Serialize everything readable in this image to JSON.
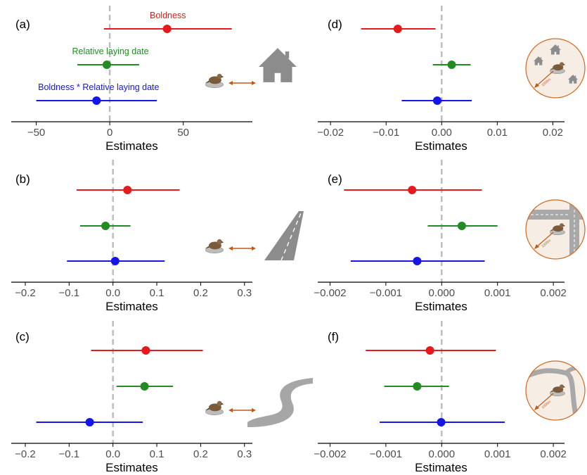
{
  "chart_data": [
    {
      "panel": "(a)",
      "type": "forest",
      "xlabel": "Estimates",
      "ticks": [
        -50,
        0,
        50
      ],
      "tick_labels": [
        "−50",
        "0",
        "50"
      ],
      "xlim": [
        -67,
        97
      ],
      "icon": "nest-distance-to-house-icon",
      "series_labels": [
        "Boldness",
        "Relative laying date",
        "Boldness * Relative laying date"
      ],
      "series": [
        {
          "name": "Boldness",
          "color": "#e41a1c",
          "estimate": 39,
          "lower": -4,
          "upper": 83
        },
        {
          "name": "Relative laying date",
          "color": "#238b23",
          "estimate": -2,
          "lower": -22,
          "upper": 20
        },
        {
          "name": "Boldness * Relative laying date",
          "color": "#1515e6",
          "estimate": -9,
          "lower": -50,
          "upper": 32
        }
      ]
    },
    {
      "panel": "(b)",
      "type": "forest",
      "xlabel": "Estimates",
      "ticks": [
        -0.2,
        -0.1,
        0.0,
        0.1,
        0.2,
        0.3
      ],
      "tick_labels": [
        "−0.2",
        "−0.1",
        "0.0",
        "0.1",
        "0.2",
        "0.3"
      ],
      "xlim": [
        -0.232,
        0.318
      ],
      "icon": "nest-distance-to-road-icon",
      "series": [
        {
          "name": "Boldness",
          "color": "#e41a1c",
          "estimate": 0.033,
          "lower": -0.083,
          "upper": 0.152
        },
        {
          "name": "Relative laying date",
          "color": "#238b23",
          "estimate": -0.017,
          "lower": -0.075,
          "upper": 0.04
        },
        {
          "name": "Boldness * Relative laying date",
          "color": "#1515e6",
          "estimate": 0.005,
          "lower": -0.105,
          "upper": 0.118
        }
      ]
    },
    {
      "panel": "(c)",
      "type": "forest",
      "xlabel": "Estimates",
      "ticks": [
        -0.2,
        -0.1,
        0.0,
        0.1,
        0.2,
        0.3
      ],
      "tick_labels": [
        "−0.2",
        "−0.1",
        "0.0",
        "0.1",
        "0.2",
        "0.3"
      ],
      "xlim": [
        -0.232,
        0.318
      ],
      "icon": "nest-distance-to-river-icon",
      "series": [
        {
          "name": "Boldness",
          "color": "#e41a1c",
          "estimate": 0.075,
          "lower": -0.05,
          "upper": 0.205
        },
        {
          "name": "Relative laying date",
          "color": "#238b23",
          "estimate": 0.072,
          "lower": 0.008,
          "upper": 0.137
        },
        {
          "name": "Boldness * Relative laying date",
          "color": "#1515e6",
          "estimate": -0.053,
          "lower": -0.175,
          "upper": 0.068
        }
      ]
    },
    {
      "panel": "(d)",
      "type": "forest",
      "xlabel": "Estimates",
      "ticks": [
        -0.02,
        -0.01,
        0.0,
        0.01,
        0.02
      ],
      "tick_labels": [
        "−0.02",
        "−0.01",
        "0.00",
        "0.01",
        "0.02"
      ],
      "xlim": [
        -0.0223,
        0.0221
      ],
      "icon": "houses-within-1000m-icon",
      "series": [
        {
          "name": "Boldness",
          "color": "#e41a1c",
          "estimate": -0.0079,
          "lower": -0.0145,
          "upper": -0.0011
        },
        {
          "name": "Relative laying date",
          "color": "#238b23",
          "estimate": 0.0018,
          "lower": -0.0016,
          "upper": 0.0052
        },
        {
          "name": "Boldness * Relative laying date",
          "color": "#1515e6",
          "estimate": -0.0008,
          "lower": -0.0072,
          "upper": 0.0054
        }
      ]
    },
    {
      "panel": "(e)",
      "type": "forest",
      "xlabel": "Estimates",
      "ticks": [
        -0.002,
        -0.001,
        0.0,
        0.001,
        0.002
      ],
      "tick_labels": [
        "−0.002",
        "−0.001",
        "0.000",
        "0.001",
        "0.002"
      ],
      "xlim": [
        -0.00222,
        0.0022
      ],
      "icon": "roads-within-1000m-icon",
      "series": [
        {
          "name": "Boldness",
          "color": "#e41a1c",
          "estimate": -0.00053,
          "lower": -0.00175,
          "upper": 0.00072
        },
        {
          "name": "Relative laying date",
          "color": "#238b23",
          "estimate": 0.00036,
          "lower": -0.00025,
          "upper": 0.001
        },
        {
          "name": "Boldness * Relative laying date",
          "color": "#1515e6",
          "estimate": -0.00044,
          "lower": -0.00163,
          "upper": 0.00077
        }
      ]
    },
    {
      "panel": "(f)",
      "type": "forest",
      "xlabel": "Estimates",
      "ticks": [
        -0.002,
        -0.001,
        0.0,
        0.001,
        0.002
      ],
      "tick_labels": [
        "−0.002",
        "−0.001",
        "0.000",
        "0.001",
        "0.002"
      ],
      "xlim": [
        -0.00222,
        0.0022
      ],
      "icon": "rivers-within-1000m-icon",
      "series": [
        {
          "name": "Boldness",
          "color": "#e41a1c",
          "estimate": -0.00021,
          "lower": -0.00136,
          "upper": 0.00097
        },
        {
          "name": "Relative laying date",
          "color": "#238b23",
          "estimate": -0.00044,
          "lower": -0.00103,
          "upper": 0.00013
        },
        {
          "name": "Boldness * Relative laying date",
          "color": "#1515e6",
          "estimate": -1e-05,
          "lower": -0.00111,
          "upper": 0.00113
        }
      ]
    }
  ],
  "icon_distance_label": "1000m",
  "colors": {
    "zero_line": "#bbbbbb",
    "axis": "#000000",
    "tick_label": "#4d4d4d",
    "icon_gray": "#8c8c8c",
    "icon_circle_fill": "#f6ede4",
    "icon_circle_stroke": "#d2691e",
    "arrow": "#c0581a"
  }
}
